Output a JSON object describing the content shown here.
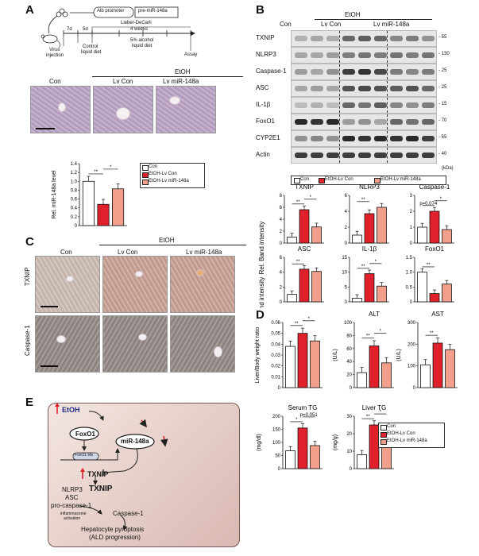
{
  "panels": {
    "a": "A",
    "b": "B",
    "c": "C",
    "d": "D",
    "e": "E"
  },
  "panel_a": {
    "promoter": "Alb promoter",
    "construct": "pre-miR-148a",
    "t7d": "7d",
    "t5d": "5d",
    "diet": "Lieber-DeCarli",
    "weeks": "4 weeks",
    "virus": "Virus",
    "injection": "injection",
    "control": "Control",
    "control_diet": "liquid diet",
    "alcohol": "5% alcohol",
    "alcohol_diet": "liquid diet",
    "assay": "Assay",
    "etoh": "EtOH",
    "con": "Con",
    "lvcon": "Lv Con",
    "lvmir": "Lv miR-148a"
  },
  "panel_b": {
    "etoh": "EtOH",
    "con": "Con",
    "lvcon": "Lv Con",
    "lvmir": "Lv miR-148a",
    "kda": "(kDa)",
    "blots": [
      {
        "name": "TXNIP",
        "mw": "55"
      },
      {
        "name": "NLRP3",
        "mw": "130"
      },
      {
        "name": "Caspase-1",
        "mw": "25"
      },
      {
        "name": "ASC",
        "mw": "25"
      },
      {
        "name": "IL-1β",
        "mw": "15"
      },
      {
        "name": "FoxO1",
        "mw": "70"
      },
      {
        "name": "CYP2E1",
        "mw": "55"
      },
      {
        "name": "Actin",
        "mw": "40"
      }
    ],
    "ylabel": "Rel. Band intensity"
  },
  "legend": {
    "con": "Con",
    "lvcon": "EtOH-Lv Con",
    "lvmir": "EtOH-Lv miR-148a"
  },
  "colors": {
    "con": "#ffffff",
    "lvcon": "#e0202b",
    "lvmir": "#f2a08c"
  },
  "panel_c": {
    "etoh": "EtOH",
    "con": "Con",
    "lvcon": "Lv Con",
    "lvmir": "Lv miR-148a",
    "row1": "TXNIP",
    "row2": "Caspase-1"
  },
  "panel_e": {
    "etoh": "EtOH",
    "foxo1": "FoxO1",
    "mir": "miR-148a",
    "foxo1re": "FoxO1 RE",
    "txnip1": "TXNIP",
    "nlrp3": "NLRP3",
    "txnip2": "TXNIP",
    "asc": "ASC",
    "procasp": "pro-caspase-1",
    "inflam1": "inflammasome",
    "inflam2": "activation",
    "casp1": "Caspase-1",
    "outcome1": "Hepatocyte pyroptosis",
    "outcome2": "(ALD progression)"
  },
  "chart_data": [
    {
      "type": "bar",
      "title": "",
      "ylabel": "Rel. miR-148a level",
      "ylim": [
        0,
        1.4
      ],
      "yticks": [
        "0",
        "0.2",
        "0.4",
        "0.6",
        "0.8",
        "1.0",
        "1.2",
        "1.4"
      ],
      "categories": [
        "Con",
        "EtOH-Lv Con",
        "EtOH-Lv miR-148a"
      ],
      "values": [
        1.0,
        0.48,
        0.83
      ],
      "sig": [
        {
          "label": "**"
        },
        {
          "label": "*"
        }
      ]
    },
    {
      "type": "bar",
      "title": "TXNIP",
      "ylabel": "",
      "ylim": [
        0,
        8
      ],
      "yticks": [
        "0",
        "2",
        "4",
        "6",
        "8"
      ],
      "categories": [
        "Con",
        "EtOH-Lv Con",
        "EtOH-Lv miR-148a"
      ],
      "values": [
        1.0,
        5.6,
        2.7
      ],
      "sig": [
        {
          "label": "**"
        },
        {
          "label": "*"
        }
      ]
    },
    {
      "type": "bar",
      "title": "NLRP3",
      "ylabel": "",
      "ylim": [
        0,
        6
      ],
      "yticks": [
        "0",
        "2",
        "4",
        "6"
      ],
      "categories": [
        "Con",
        "EtOH-Lv Con",
        "EtOH-Lv miR-148a"
      ],
      "values": [
        1.0,
        3.7,
        4.5
      ],
      "sig": [
        {
          "label": "**"
        }
      ]
    },
    {
      "type": "bar",
      "title": "Caspase-1",
      "ylabel": "",
      "ylim": [
        0,
        3
      ],
      "yticks": [
        "0",
        "1",
        "2",
        "3"
      ],
      "categories": [
        "Con",
        "EtOH-Lv Con",
        "EtOH-Lv miR-148a"
      ],
      "values": [
        1.0,
        2.0,
        0.85
      ],
      "sig": [
        {
          "label": "p=0.074"
        },
        {
          "label": "*"
        }
      ]
    },
    {
      "type": "bar",
      "title": "ASC",
      "ylabel": "",
      "ylim": [
        0,
        6
      ],
      "yticks": [
        "0",
        "2",
        "4",
        "6"
      ],
      "categories": [
        "Con",
        "EtOH-Lv Con",
        "EtOH-Lv miR-148a"
      ],
      "values": [
        1.0,
        4.4,
        4.1
      ],
      "sig": [
        {
          "label": "**"
        }
      ]
    },
    {
      "type": "bar",
      "title": "IL-1β",
      "ylabel": "",
      "ylim": [
        0,
        15
      ],
      "yticks": [
        "0",
        "5",
        "10",
        "15"
      ],
      "categories": [
        "Con",
        "EtOH-Lv Con",
        "EtOH-Lv miR-148a"
      ],
      "values": [
        1.2,
        9.5,
        5.3
      ],
      "sig": [
        {
          "label": "**"
        },
        {
          "label": "*"
        }
      ]
    },
    {
      "type": "bar",
      "title": "FoxO1",
      "ylabel": "",
      "ylim": [
        0,
        1.5
      ],
      "yticks": [
        "0",
        "0.5",
        "1.0",
        "1.5"
      ],
      "categories": [
        "Con",
        "EtOH-Lv Con",
        "EtOH-Lv miR-148a"
      ],
      "values": [
        1.0,
        0.28,
        0.6
      ],
      "sig": [
        {
          "label": "**"
        }
      ]
    },
    {
      "type": "bar",
      "title": "",
      "ylabel": "Liver/Body weight ratio",
      "ylim": [
        0,
        0.06
      ],
      "yticks": [
        "0",
        "0.01",
        "0.02",
        "0.03",
        "0.04",
        "0.05",
        "0.06"
      ],
      "categories": [
        "Con",
        "EtOH-Lv Con",
        "EtOH-Lv miR-148a"
      ],
      "values": [
        0.038,
        0.05,
        0.043
      ],
      "sig": [
        {
          "label": "**"
        },
        {
          "label": "*"
        }
      ]
    },
    {
      "type": "bar",
      "title": "ALT",
      "ylabel": "(U/L)",
      "ylim": [
        0,
        100
      ],
      "yticks": [
        "0",
        "20",
        "40",
        "60",
        "80",
        "100"
      ],
      "categories": [
        "Con",
        "EtOH-Lv Con",
        "EtOH-Lv miR-148a"
      ],
      "values": [
        23,
        64,
        38
      ],
      "sig": [
        {
          "label": "**"
        },
        {
          "label": "*"
        }
      ]
    },
    {
      "type": "bar",
      "title": "AST",
      "ylabel": "(U/L)",
      "ylim": [
        0,
        300
      ],
      "yticks": [
        "0",
        "100",
        "200",
        "300"
      ],
      "categories": [
        "Con",
        "EtOH-Lv Con",
        "EtOH-Lv miR-148a"
      ],
      "values": [
        105,
        205,
        175
      ],
      "sig": [
        {
          "label": "**"
        }
      ]
    },
    {
      "type": "bar",
      "title": "Serum TG",
      "ylabel": "(mg/dl)",
      "ylim": [
        0,
        200
      ],
      "yticks": [
        "0",
        "50",
        "100",
        "150",
        "200"
      ],
      "categories": [
        "Con",
        "EtOH-Lv Con",
        "EtOH-Lv miR-148a"
      ],
      "values": [
        68,
        155,
        88
      ],
      "sig": [
        {
          "label": "*"
        },
        {
          "label": "p=0.051"
        }
      ]
    },
    {
      "type": "bar",
      "title": "Liver TG",
      "ylabel": "(mg/g)",
      "ylim": [
        0,
        30
      ],
      "yticks": [
        "0",
        "10",
        "20",
        "30"
      ],
      "categories": [
        "Con",
        "EtOH-Lv Con",
        "EtOH-Lv miR-148a"
      ],
      "values": [
        8,
        25,
        18
      ],
      "sig": [
        {
          "label": "**"
        },
        {
          "label": "*"
        }
      ]
    }
  ]
}
